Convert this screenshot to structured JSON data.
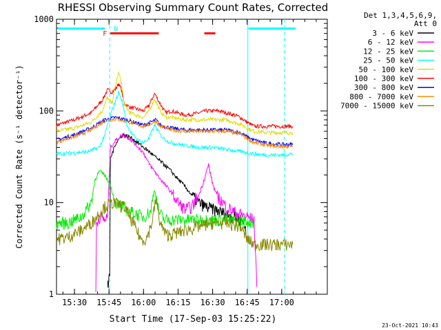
{
  "chart_data": {
    "type": "line",
    "title": "RHESSI Observing Summary Count Rates, Corrected",
    "xlabel": "Start Time (17-Sep-03 15:25:22)",
    "ylabel": "Corrected Count Rate (s⁻¹ detector⁻¹)",
    "yscale": "log",
    "ylim": [
      1,
      1000
    ],
    "xlim_minutes": [
      15.37,
      17.33
    ],
    "x_unit": "hours (UT, 17-Sep-03)",
    "x_ticks": [
      {
        "label": "15:30",
        "v": 15.5
      },
      {
        "label": "15:45",
        "v": 15.75
      },
      {
        "label": "16:00",
        "v": 16.0
      },
      {
        "label": "16:15",
        "v": 16.25
      },
      {
        "label": "16:30",
        "v": 16.5
      },
      {
        "label": "16:45",
        "v": 16.75
      },
      {
        "label": "17:00",
        "v": 17.0
      }
    ],
    "y_ticks": [
      {
        "label": "1",
        "v": 1
      },
      {
        "label": "10",
        "v": 10
      },
      {
        "label": "100",
        "v": 100
      },
      {
        "label": "1000",
        "v": 1000
      }
    ],
    "detectors": "Det 1,3,4,5,6,9,",
    "attenuator": "Att 0",
    "legend": [
      {
        "name": "3 - 6 keV",
        "color": "#000000"
      },
      {
        "name": "6 - 12 keV",
        "color": "#ff00ff"
      },
      {
        "name": "12 - 25 keV",
        "color": "#00ee00"
      },
      {
        "name": "25 - 50 keV",
        "color": "#00ffff"
      },
      {
        "name": "50 - 100 keV",
        "color": "#dddd00"
      },
      {
        "name": "100 - 300 keV",
        "color": "#ff0000"
      },
      {
        "name": "300 - 800 keV",
        "color": "#0000ff"
      },
      {
        "name": "800 - 7000 keV",
        "color": "#ff8800"
      },
      {
        "name": "7000 - 15000 keV",
        "color": "#888800"
      }
    ],
    "series": [
      {
        "name": "100 - 300 keV",
        "color": "#ff0000",
        "x": [
          15.37,
          15.5,
          15.62,
          15.7,
          15.74,
          15.77,
          15.8,
          15.82,
          15.84,
          15.86,
          15.9,
          15.95,
          16.0,
          16.04,
          16.08,
          16.12,
          16.16,
          16.2,
          16.25,
          16.3,
          16.35,
          16.4,
          16.45,
          16.5,
          16.55,
          16.6,
          16.66,
          16.7,
          16.75,
          16.8,
          16.9,
          17.0,
          17.08
        ],
        "y": [
          70,
          80,
          95,
          130,
          170,
          160,
          175,
          200,
          170,
          120,
          110,
          105,
          100,
          115,
          155,
          120,
          95,
          100,
          95,
          90,
          92,
          95,
          100,
          100,
          100,
          95,
          90,
          85,
          75,
          68,
          68,
          68,
          68
        ]
      },
      {
        "name": "50 - 100 keV",
        "color": "#dddd00",
        "x": [
          15.37,
          15.5,
          15.62,
          15.7,
          15.74,
          15.77,
          15.8,
          15.82,
          15.84,
          15.86,
          15.9,
          15.95,
          16.0,
          16.04,
          16.08,
          16.12,
          16.16,
          16.2,
          16.3,
          16.4,
          16.5,
          16.6,
          16.7,
          16.75,
          16.8,
          16.9,
          17.0,
          17.08
        ],
        "y": [
          60,
          65,
          75,
          100,
          140,
          120,
          200,
          260,
          200,
          120,
          95,
          90,
          85,
          100,
          135,
          100,
          85,
          85,
          80,
          80,
          80,
          80,
          72,
          65,
          60,
          58,
          58,
          58
        ]
      },
      {
        "name": "300 - 800 keV",
        "color": "#0000ff",
        "x": [
          15.37,
          15.5,
          15.62,
          15.72,
          15.8,
          15.9,
          16.0,
          16.05,
          16.09,
          16.12,
          16.2,
          16.3,
          16.4,
          16.5,
          16.6,
          16.7,
          16.75,
          16.8,
          16.9,
          17.0,
          17.08
        ],
        "y": [
          48,
          55,
          65,
          80,
          85,
          78,
          70,
          75,
          80,
          70,
          65,
          62,
          62,
          62,
          62,
          58,
          52,
          48,
          44,
          43,
          43
        ]
      },
      {
        "name": "800 - 7000 keV",
        "color": "#ff8800",
        "x": [
          15.37,
          15.5,
          15.62,
          15.72,
          15.8,
          15.9,
          16.0,
          16.05,
          16.09,
          16.12,
          16.2,
          16.3,
          16.4,
          16.5,
          16.6,
          16.7,
          16.75,
          16.8,
          16.9,
          17.0,
          17.08
        ],
        "y": [
          46,
          52,
          62,
          78,
          82,
          75,
          68,
          72,
          78,
          68,
          62,
          60,
          60,
          60,
          60,
          56,
          50,
          45,
          42,
          41,
          41
        ]
      },
      {
        "name": "25 - 50 keV",
        "color": "#00ffff",
        "x": [
          15.37,
          15.5,
          15.6,
          15.68,
          15.72,
          15.75,
          15.78,
          15.82,
          15.85,
          15.88,
          15.92,
          15.96,
          16.0,
          16.04,
          16.08,
          16.12,
          16.16,
          16.2,
          16.3,
          16.4,
          16.5,
          16.6,
          16.7,
          16.8,
          16.9,
          17.0,
          17.08
        ],
        "y": [
          34,
          35,
          36,
          40,
          55,
          80,
          110,
          160,
          120,
          70,
          55,
          48,
          45,
          50,
          70,
          55,
          48,
          45,
          42,
          40,
          40,
          38,
          36,
          34,
          33,
          33,
          34
        ]
      },
      {
        "name": "3 - 6 keV",
        "color": "#000000",
        "x": [
          15.74,
          15.745,
          15.755,
          15.76,
          15.8,
          15.85,
          15.9,
          15.95,
          16.0,
          16.05,
          16.1,
          16.15,
          16.2,
          16.25,
          16.3,
          16.35,
          16.4,
          16.45,
          16.5,
          16.55,
          16.6,
          16.65,
          16.7,
          16.73,
          16.745
        ],
        "y": [
          1.4,
          1.2,
          1.6,
          30,
          45,
          55,
          52,
          46,
          40,
          35,
          30,
          26,
          22,
          18,
          15,
          12,
          10,
          9,
          8.5,
          8,
          7.5,
          7,
          6.5,
          6,
          4.0
        ]
      },
      {
        "name": "6 - 12 keV",
        "color": "#ff00ff",
        "x": [
          15.655,
          15.66,
          15.68,
          15.72,
          15.74,
          15.76,
          15.8,
          15.85,
          15.9,
          15.95,
          16.0,
          16.03,
          16.06,
          16.1,
          16.15,
          16.2,
          16.25,
          16.3,
          16.35,
          16.4,
          16.44,
          16.47,
          16.5,
          16.53,
          16.6,
          16.65,
          16.7,
          16.75,
          16.8,
          16.82
        ],
        "y": [
          1.1,
          6,
          7,
          6.5,
          7,
          40,
          48,
          55,
          50,
          42,
          35,
          28,
          24,
          20,
          16,
          13,
          10,
          8.5,
          9,
          12,
          18,
          26,
          16,
          12,
          9,
          8,
          7.5,
          7,
          6.5,
          1.2
        ]
      },
      {
        "name": "12 - 25 keV",
        "color": "#00ee00",
        "x": [
          15.37,
          15.45,
          15.55,
          15.62,
          15.65,
          15.68,
          15.72,
          15.76,
          15.8,
          15.85,
          15.9,
          15.95,
          16.0,
          16.05,
          16.08,
          16.11,
          16.15,
          16.2,
          16.3,
          16.4,
          16.5,
          16.6,
          16.7,
          16.75,
          16.8
        ],
        "y": [
          6,
          6,
          7,
          10,
          18,
          22,
          20,
          15,
          10,
          9,
          8,
          7.5,
          7,
          8,
          14,
          8,
          6.5,
          6.5,
          6.5,
          6.5,
          6.5,
          6.5,
          6.3,
          6.2,
          6.2
        ]
      },
      {
        "name": "7000 - 15000 keV",
        "color": "#888800",
        "x": [
          15.37,
          15.45,
          15.55,
          15.62,
          15.66,
          15.7,
          15.74,
          15.78,
          15.82,
          15.86,
          15.9,
          15.95,
          15.98,
          16.02,
          16.06,
          16.09,
          16.12,
          16.16,
          16.2,
          16.3,
          16.4,
          16.5,
          16.6,
          16.7,
          16.75,
          16.8,
          16.9,
          17.0,
          17.08
        ],
        "y": [
          4,
          4.2,
          5,
          6,
          7,
          8.5,
          9.5,
          10,
          9.5,
          9,
          7,
          5,
          4,
          4,
          6,
          11,
          6,
          4.5,
          4.5,
          5,
          5.5,
          6,
          6,
          5.5,
          4,
          3.5,
          3.5,
          3.5,
          3.5
        ]
      }
    ],
    "flag_bars": {
      "cyan_labels": [
        "N"
      ],
      "red_labels": [
        "F"
      ],
      "note": "night / flare flag bars across the top"
    },
    "timestamp": "23-Oct-2021 10:43"
  }
}
